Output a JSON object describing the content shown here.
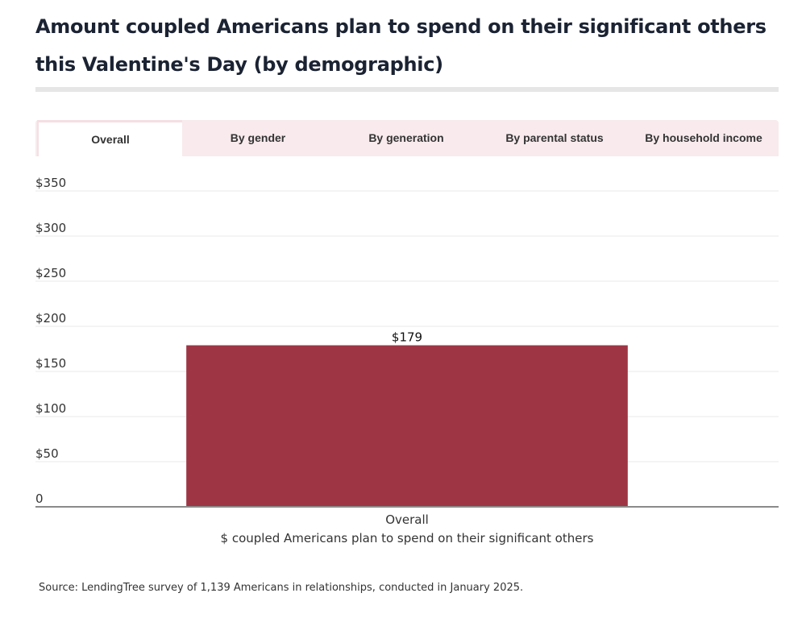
{
  "title": "Amount coupled Americans plan to spend on their significant others this Valentine's Day (by demographic)",
  "tabs": [
    {
      "label": "Overall",
      "active": true
    },
    {
      "label": "By gender",
      "active": false
    },
    {
      "label": "By generation",
      "active": false
    },
    {
      "label": "By parental status",
      "active": false
    },
    {
      "label": "By household income",
      "active": false
    }
  ],
  "colors": {
    "bar": "#9e3544",
    "tab_bg": "#f8eaed",
    "grid": "#e9e9e9",
    "axis": "#8a8a8a"
  },
  "chart_data": {
    "type": "bar",
    "categories": [
      "Overall"
    ],
    "values": [
      179
    ],
    "value_labels": [
      "$179"
    ],
    "y_ticks": [
      0,
      50,
      100,
      150,
      200,
      250,
      300,
      350
    ],
    "y_tick_labels": [
      "0",
      "$50",
      "$100",
      "$150",
      "$200",
      "$250",
      "$300",
      "$350"
    ],
    "ylim": [
      0,
      350
    ],
    "xlabel": "$ coupled Americans plan to spend on their significant others",
    "ylabel": "",
    "grid": true
  },
  "source": "Source: LendingTree survey of 1,139 Americans in relationships, conducted in January 2025."
}
